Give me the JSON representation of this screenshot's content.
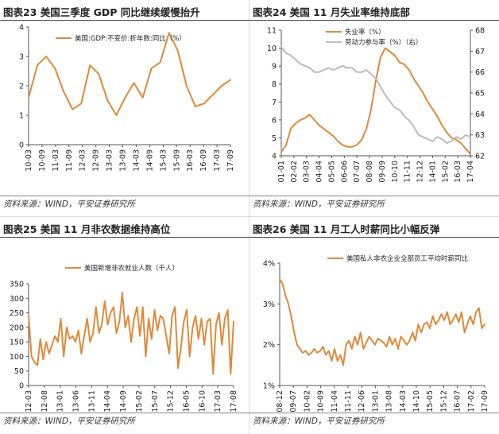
{
  "colors": {
    "orange": "#E0893A",
    "gray": "#BCBCBC",
    "axis": "#555555",
    "rule": "#444444"
  },
  "panels": [
    {
      "title": "图表23   美国三季度 GDP 同比继续缓慢抬升",
      "source": "资料来源：WIND，平安证券研究所"
    },
    {
      "title": "图表24   美国 11 月失业率维持底部",
      "source": "资料来源：WIND，平安证券研究所"
    },
    {
      "title": "图表25   美国 11 月非农数据维持高位",
      "source": "资料来源：WIND，平安证券研究所"
    },
    {
      "title": "图表26   美国 11 月工人时薪同比小幅反弹",
      "source": "资料来源：WIND，平安证券研究所"
    }
  ],
  "chart_data": [
    {
      "type": "line",
      "y_ticks": [
        "0",
        "1",
        "2",
        "3",
        "4"
      ],
      "ylim": [
        0,
        4
      ],
      "x_ticks": [
        "10-03",
        "10-09",
        "11-03",
        "11-09",
        "12-03",
        "12-09",
        "13-03",
        "13-09",
        "14-03",
        "14-09",
        "15-03",
        "15-09",
        "16-03",
        "16-09",
        "17-03",
        "17-09"
      ],
      "series": [
        {
          "name": "美国:GDP:不变价:折年数:同比（%）",
          "color": "#E0893A",
          "values": [
            1.6,
            2.7,
            3.0,
            2.6,
            1.8,
            1.2,
            1.4,
            2.7,
            2.4,
            1.5,
            1.0,
            1.6,
            2.1,
            1.6,
            2.6,
            2.8,
            3.8,
            3.2,
            2.0,
            1.3,
            1.4,
            1.7,
            2.0,
            2.2
          ]
        }
      ]
    },
    {
      "type": "line",
      "x_ticks": [
        "01-01",
        "02-02",
        "03-03",
        "04-04",
        "05-05",
        "06-06",
        "07-07",
        "08-08",
        "09-09",
        "10-10",
        "11-11",
        "12-12",
        "14-01",
        "15-02",
        "16-03",
        "17-04"
      ],
      "y_left_ticks": [
        "4",
        "5",
        "6",
        "7",
        "8",
        "9",
        "10",
        "11"
      ],
      "ylim_left": [
        4,
        11
      ],
      "y_right_ticks": [
        "62",
        "63",
        "64",
        "65",
        "66",
        "67",
        "68"
      ],
      "ylim_right": [
        62,
        68
      ],
      "series": [
        {
          "name": "失业率（%）",
          "axis": "left",
          "color": "#E0893A",
          "values": [
            4.2,
            4.6,
            5.5,
            5.8,
            6.0,
            6.1,
            6.3,
            6.0,
            5.7,
            5.5,
            5.3,
            5.1,
            4.8,
            4.6,
            4.5,
            4.5,
            4.6,
            4.9,
            5.5,
            6.6,
            8.2,
            9.5,
            10.0,
            9.8,
            9.6,
            9.2,
            9.1,
            8.8,
            8.3,
            7.9,
            7.5,
            7.0,
            6.6,
            6.2,
            5.7,
            5.3,
            5.0,
            4.9,
            4.7,
            4.4,
            4.1
          ]
        },
        {
          "name": "劳动力参与率（%）（右）",
          "axis": "right",
          "color": "#BCBCBC",
          "values": [
            67.2,
            66.9,
            66.8,
            66.6,
            66.4,
            66.3,
            66.2,
            66.0,
            66.0,
            66.1,
            66.2,
            66.1,
            66.2,
            66.3,
            66.2,
            66.2,
            66.0,
            66.0,
            66.1,
            65.9,
            65.7,
            65.3,
            64.9,
            64.6,
            64.3,
            64.2,
            63.9,
            63.7,
            63.4,
            63.0,
            62.9,
            62.8,
            62.7,
            62.9,
            62.8,
            62.6,
            62.7,
            62.9,
            62.8,
            63.0,
            62.9
          ]
        }
      ]
    },
    {
      "type": "line",
      "y_ticks": [
        "0",
        "50",
        "100",
        "150",
        "200",
        "250",
        "300",
        "350"
      ],
      "ylim": [
        0,
        350
      ],
      "x_ticks": [
        "12-03",
        "12-08",
        "13-01",
        "13-06",
        "13-11",
        "14-04",
        "14-09",
        "15-02",
        "15-07",
        "15-12",
        "16-05",
        "16-10",
        "17-03",
        "17-08"
      ],
      "series": [
        {
          "name": "美国新增非农就业人数（千人）",
          "color": "#E0893A",
          "values": [
            240,
            100,
            80,
            70,
            160,
            90,
            150,
            110,
            140,
            170,
            150,
            230,
            100,
            200,
            160,
            170,
            150,
            190,
            110,
            170,
            230,
            150,
            180,
            270,
            180,
            210,
            290,
            210,
            250,
            270,
            180,
            220,
            320,
            200,
            240,
            150,
            230,
            270,
            170,
            270,
            100,
            230,
            160,
            260,
            190,
            240,
            230,
            170,
            110,
            240,
            270,
            60,
            130,
            220,
            260,
            100,
            200,
            240,
            160,
            230,
            140,
            220,
            230,
            40,
            210,
            250,
            140,
            230,
            260,
            40,
            220
          ]
        }
      ]
    },
    {
      "type": "line",
      "y_ticks": [
        "1%",
        "2%",
        "3%",
        "4%"
      ],
      "ylim": [
        1,
        4
      ],
      "x_ticks": [
        "08-12",
        "09-07",
        "10-02",
        "10-09",
        "11-04",
        "11-11",
        "12-06",
        "13-01",
        "13-08",
        "14-03",
        "14-10",
        "15-05",
        "15-12",
        "16-07",
        "17-02",
        "17-09"
      ],
      "series": [
        {
          "name": "美国私人非农企业全部员工平均时薪同比",
          "color": "#E0893A",
          "values": [
            3.6,
            3.5,
            3.2,
            3.0,
            2.7,
            2.3,
            2.0,
            1.9,
            1.8,
            1.85,
            1.75,
            1.8,
            1.9,
            1.8,
            1.85,
            1.95,
            1.75,
            1.85,
            1.6,
            1.9,
            1.6,
            1.75,
            1.5,
            2.0,
            2.1,
            1.9,
            2.2,
            2.0,
            2.3,
            1.9,
            2.05,
            2.2,
            2.1,
            2.0,
            2.15,
            2.1,
            2.05,
            1.95,
            2.2,
            2.0,
            2.15,
            1.9,
            2.2,
            2.1,
            2.0,
            2.1,
            2.3,
            2.1,
            2.5,
            2.3,
            2.5,
            2.55,
            2.4,
            2.7,
            2.5,
            2.6,
            2.75,
            2.6,
            2.8,
            2.5,
            2.6,
            2.75,
            2.55,
            2.8,
            2.3,
            2.5,
            2.7,
            2.5,
            2.8,
            2.9,
            2.4,
            2.5
          ]
        }
      ]
    }
  ]
}
